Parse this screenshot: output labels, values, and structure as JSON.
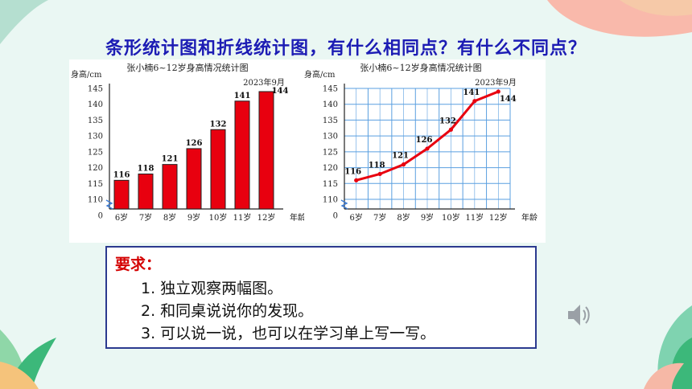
{
  "page": {
    "question": "条形统计图和折线统计图，有什么相同点？有什么不同点？"
  },
  "chart_data": [
    {
      "type": "bar",
      "title": "张小楠6~12岁身高情况统计图",
      "subtitle": "2023年9月",
      "ylabel": "身高/cm",
      "xlabel": "年龄",
      "categories": [
        "6岁",
        "7岁",
        "8岁",
        "9岁",
        "10岁",
        "11岁",
        "12岁"
      ],
      "values": [
        116,
        118,
        121,
        126,
        132,
        141,
        144
      ],
      "yticks": [
        0,
        110,
        115,
        120,
        125,
        130,
        135,
        140,
        145
      ],
      "ylim": [
        110,
        145
      ],
      "axis_break": true,
      "color": "#e8000f"
    },
    {
      "type": "line",
      "title": "张小楠6~12岁身高情况统计图",
      "subtitle": "2023年9月",
      "ylabel": "身高/cm",
      "xlabel": "年龄",
      "categories": [
        "6岁",
        "7岁",
        "8岁",
        "9岁",
        "10岁",
        "11岁",
        "12岁"
      ],
      "values": [
        116,
        118,
        121,
        126,
        132,
        141,
        144
      ],
      "yticks": [
        0,
        110,
        115,
        120,
        125,
        130,
        135,
        140,
        145
      ],
      "ylim": [
        110,
        145
      ],
      "grid": true,
      "axis_break": true,
      "color": "#e8000f",
      "grid_color": "#5a9fe0"
    }
  ],
  "requirements": {
    "title": "要求：",
    "items": [
      "1. 独立观察两幅图。",
      "2. 和同桌说说你的发现。",
      "3. 可以说一说，也可以在学习单上写一写。"
    ]
  }
}
